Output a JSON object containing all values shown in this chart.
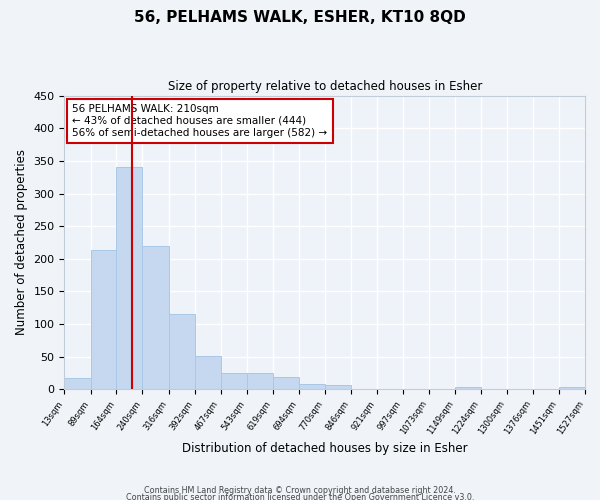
{
  "title": "56, PELHAMS WALK, ESHER, KT10 8QD",
  "subtitle": "Size of property relative to detached houses in Esher",
  "xlabel": "Distribution of detached houses by size in Esher",
  "ylabel": "Number of detached properties",
  "bar_color": "#c5d8f0",
  "bar_edge_color": "#a8c8e8",
  "bg_color": "#eef3f9",
  "grid_color": "#ffffff",
  "fig_bg_color": "#f0f4f8",
  "vline_x": 210,
  "vline_color": "#cc0000",
  "annotation_text": "56 PELHAMS WALK: 210sqm\n← 43% of detached houses are smaller (444)\n56% of semi-detached houses are larger (582) →",
  "annotation_box_color": "#cc0000",
  "bin_edges": [
    13,
    89,
    164,
    240,
    316,
    392,
    467,
    543,
    619,
    694,
    770,
    846,
    921,
    997,
    1073,
    1149,
    1224,
    1300,
    1376,
    1451,
    1527
  ],
  "bar_heights": [
    17,
    214,
    340,
    220,
    115,
    51,
    25,
    25,
    19,
    8,
    6,
    0,
    0,
    0,
    0,
    3,
    0,
    0,
    0,
    3
  ],
  "ylim": [
    0,
    450
  ],
  "yticks": [
    0,
    50,
    100,
    150,
    200,
    250,
    300,
    350,
    400,
    450
  ],
  "footer_line1": "Contains HM Land Registry data © Crown copyright and database right 2024.",
  "footer_line2": "Contains public sector information licensed under the Open Government Licence v3.0."
}
